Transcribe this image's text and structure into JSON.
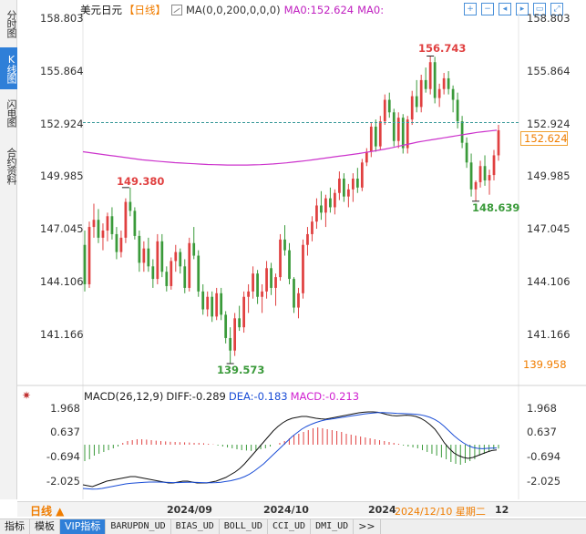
{
  "side_tabs": [
    "分时图",
    "K线图",
    "闪电图",
    "合约资料"
  ],
  "header": {
    "symbol": "美元日元",
    "period": "【日线】",
    "ma_label": "MA(0,0,200,0,0,0)",
    "ma0_value": "MA0:152.624",
    "ma0_label": "MA0:"
  },
  "toolbar_icons": [
    "zoom-in-icon",
    "zoom-out-icon",
    "move-left-icon",
    "move-right-icon",
    "fit-icon",
    "fullscreen-icon"
  ],
  "y_axis": {
    "ticks": [
      "158.803",
      "155.864",
      "152.924",
      "149.985",
      "147.045",
      "144.106",
      "141.166"
    ],
    "current_price": "152.624",
    "bottom_right_value": "139.958"
  },
  "annotations": {
    "high": "156.743",
    "left_peak": "149.380",
    "low": "139.573",
    "right_low": "148.639"
  },
  "macd": {
    "title": "MACD(26,12,9)",
    "diff": "DIFF:-0.289",
    "dea": "DEA:-0.183",
    "macd": "MACD:-0.213",
    "ticks": [
      "1.968",
      "0.637",
      "-0.694",
      "-2.025"
    ]
  },
  "x_axis": {
    "period_button": "日线 ▲",
    "labels": [
      "2024/09",
      "2024/10",
      "2024"
    ],
    "cursor_date": "2024/12/10 星期二",
    "cursor_suffix": "12"
  },
  "bottom_tabs": [
    "指标",
    "模板",
    "VIP指标",
    "BARUPDN_UD",
    "BIAS_UD",
    "BOLL_UD",
    "CCI_UD",
    "DMI_UD",
    ">>"
  ],
  "colors": {
    "up": "#e04040",
    "down": "#3a9a3a",
    "ma": "#cc33cc",
    "dea": "#1a4dd6",
    "accent": "#f07d00"
  },
  "chart_data": {
    "type": "candlestick",
    "ylim": [
      139.573,
      158.803
    ],
    "ohlc": [
      [
        146.2,
        147.0,
        143.6,
        144.0
      ],
      [
        144.0,
        147.5,
        143.8,
        147.2
      ],
      [
        147.2,
        148.5,
        146.6,
        147.6
      ],
      [
        147.6,
        148.2,
        146.3,
        146.6
      ],
      [
        146.6,
        147.4,
        145.9,
        147.0
      ],
      [
        147.0,
        148.0,
        146.4,
        147.8
      ],
      [
        147.8,
        148.3,
        146.5,
        146.8
      ],
      [
        146.8,
        147.2,
        145.4,
        145.8
      ],
      [
        145.8,
        147.0,
        145.5,
        146.6
      ],
      [
        146.6,
        148.8,
        146.3,
        148.6
      ],
      [
        148.6,
        149.4,
        147.8,
        148.1
      ],
      [
        148.1,
        148.3,
        146.5,
        146.7
      ],
      [
        146.7,
        147.0,
        144.7,
        145.2
      ],
      [
        145.2,
        146.4,
        144.7,
        146.0
      ],
      [
        146.0,
        146.6,
        144.7,
        145.0
      ],
      [
        145.0,
        145.4,
        143.8,
        144.3
      ],
      [
        144.3,
        146.8,
        144.0,
        146.4
      ],
      [
        146.4,
        146.8,
        144.4,
        144.7
      ],
      [
        144.7,
        145.0,
        143.6,
        143.9
      ],
      [
        143.9,
        145.5,
        143.7,
        145.3
      ],
      [
        145.3,
        146.2,
        144.7,
        145.8
      ],
      [
        145.8,
        146.0,
        144.6,
        145.0
      ],
      [
        145.0,
        145.4,
        143.5,
        143.8
      ],
      [
        143.8,
        146.6,
        143.6,
        146.3
      ],
      [
        146.3,
        147.2,
        145.4,
        145.6
      ],
      [
        145.6,
        145.9,
        143.3,
        143.6
      ],
      [
        143.6,
        144.0,
        142.3,
        142.6
      ],
      [
        142.6,
        143.6,
        142.2,
        143.3
      ],
      [
        143.3,
        143.6,
        141.9,
        142.2
      ],
      [
        142.2,
        143.8,
        142.0,
        143.5
      ],
      [
        143.5,
        143.8,
        142.0,
        142.3
      ],
      [
        142.3,
        142.5,
        140.7,
        141.0
      ],
      [
        141.0,
        141.6,
        139.573,
        140.3
      ],
      [
        140.3,
        142.4,
        140.0,
        142.1
      ],
      [
        142.1,
        142.8,
        141.4,
        141.6
      ],
      [
        141.6,
        143.6,
        141.3,
        143.3
      ],
      [
        143.3,
        144.0,
        142.4,
        143.6
      ],
      [
        143.6,
        145.0,
        143.2,
        144.6
      ],
      [
        144.6,
        144.8,
        142.9,
        143.3
      ],
      [
        143.3,
        144.0,
        142.4,
        143.6
      ],
      [
        143.6,
        145.3,
        143.2,
        144.9
      ],
      [
        144.9,
        145.2,
        143.4,
        143.8
      ],
      [
        143.8,
        144.6,
        142.8,
        144.4
      ],
      [
        144.4,
        146.8,
        144.2,
        146.5
      ],
      [
        146.5,
        147.3,
        145.6,
        145.9
      ],
      [
        145.9,
        146.3,
        144.0,
        144.3
      ],
      [
        144.3,
        144.4,
        142.4,
        142.7
      ],
      [
        142.7,
        143.8,
        142.1,
        143.5
      ],
      [
        143.5,
        146.5,
        143.2,
        146.2
      ],
      [
        146.2,
        147.2,
        145.6,
        146.8
      ],
      [
        146.8,
        147.8,
        146.4,
        147.5
      ],
      [
        147.5,
        148.8,
        147.1,
        148.4
      ],
      [
        148.4,
        149.2,
        147.6,
        148.0
      ],
      [
        148.0,
        149.0,
        147.2,
        148.8
      ],
      [
        148.8,
        149.4,
        148.0,
        148.3
      ],
      [
        148.3,
        149.3,
        147.9,
        149.1
      ],
      [
        149.1,
        150.3,
        148.7,
        149.9
      ],
      [
        149.9,
        150.2,
        148.6,
        148.9
      ],
      [
        148.9,
        149.6,
        148.3,
        149.3
      ],
      [
        149.3,
        150.2,
        148.6,
        149.9
      ],
      [
        149.9,
        150.5,
        149.1,
        149.4
      ],
      [
        149.4,
        151.0,
        149.2,
        150.8
      ],
      [
        150.8,
        151.6,
        150.6,
        151.4
      ],
      [
        151.4,
        153.0,
        151.1,
        152.8
      ],
      [
        152.8,
        153.2,
        151.4,
        151.7
      ],
      [
        151.7,
        153.4,
        151.5,
        153.1
      ],
      [
        153.1,
        154.6,
        152.9,
        154.3
      ],
      [
        154.3,
        154.7,
        153.3,
        153.6
      ],
      [
        153.6,
        153.8,
        151.7,
        152.0
      ],
      [
        152.0,
        153.6,
        151.6,
        153.3
      ],
      [
        153.3,
        153.5,
        151.3,
        151.6
      ],
      [
        151.6,
        153.4,
        151.3,
        153.2
      ],
      [
        153.2,
        154.8,
        152.9,
        154.5
      ],
      [
        154.5,
        155.4,
        153.6,
        153.9
      ],
      [
        153.9,
        155.7,
        153.6,
        155.4
      ],
      [
        155.4,
        156.1,
        154.7,
        154.9
      ],
      [
        154.9,
        156.743,
        154.6,
        156.4
      ],
      [
        156.4,
        156.7,
        154.1,
        154.4
      ],
      [
        154.4,
        155.2,
        153.9,
        154.9
      ],
      [
        154.9,
        155.8,
        154.6,
        155.5
      ],
      [
        155.5,
        155.9,
        154.6,
        154.9
      ],
      [
        154.9,
        155.1,
        153.6,
        154.3
      ],
      [
        154.3,
        154.7,
        152.7,
        153.1
      ],
      [
        153.1,
        153.4,
        151.6,
        151.9
      ],
      [
        151.9,
        152.2,
        150.5,
        150.8
      ],
      [
        150.8,
        151.3,
        148.9,
        149.3
      ],
      [
        149.3,
        149.8,
        148.639,
        149.7
      ],
      [
        149.7,
        150.9,
        149.4,
        150.6
      ],
      [
        150.6,
        151.2,
        149.5,
        149.8
      ],
      [
        149.8,
        150.4,
        149.0,
        150.1
      ],
      [
        150.1,
        151.5,
        149.8,
        151.2
      ],
      [
        151.2,
        152.9,
        150.9,
        152.6
      ]
    ],
    "ma200": [
      151.4,
      151.35,
      151.3,
      151.25,
      151.2,
      151.15,
      151.1,
      151.05,
      151.0,
      150.95,
      150.92,
      150.88,
      150.85,
      150.82,
      150.79,
      150.77,
      150.75,
      150.73,
      150.71,
      150.69,
      150.68,
      150.67,
      150.66,
      150.66,
      150.66,
      150.66,
      150.67,
      150.68,
      150.7,
      150.72,
      150.75,
      150.78,
      150.82,
      150.86,
      150.9,
      150.95,
      151.0,
      151.05,
      151.1,
      151.15,
      151.2,
      151.25,
      151.3,
      151.36,
      151.42,
      151.48,
      151.55,
      151.62,
      151.7,
      151.78,
      151.86,
      151.94,
      152.0,
      152.06,
      152.12,
      152.18,
      152.24,
      152.3,
      152.36,
      152.42,
      152.48,
      152.52,
      152.56,
      152.6
    ],
    "macd_ylim": [
      -2.6,
      2.4
    ],
    "macd_hist": [
      -0.9,
      -0.8,
      -0.6,
      -0.5,
      -0.4,
      -0.3,
      -0.2,
      -0.1,
      0.1,
      0.2,
      0.25,
      0.3,
      0.3,
      0.28,
      0.25,
      0.22,
      0.2,
      0.18,
      0.16,
      0.15,
      0.14,
      0.13,
      0.12,
      0.1,
      0.1,
      0.08,
      0.05,
      0.02,
      -0.05,
      -0.1,
      -0.15,
      -0.2,
      -0.25,
      -0.3,
      -0.32,
      -0.34,
      -0.3,
      -0.25,
      -0.2,
      -0.1,
      0.0,
      0.1,
      0.2,
      0.35,
      0.5,
      0.6,
      0.7,
      0.8,
      0.9,
      0.95,
      0.9,
      0.85,
      0.8,
      0.75,
      0.7,
      0.6,
      0.55,
      0.5,
      0.45,
      0.4,
      0.35,
      0.3,
      0.25,
      0.2,
      0.15,
      0.1,
      0.05,
      -0.05,
      -0.1,
      -0.15,
      -0.2,
      -0.3,
      -0.4,
      -0.5,
      -0.6,
      -0.7,
      -0.8,
      -0.95,
      -1.05,
      -1.1,
      -1.0,
      -0.9,
      -0.8,
      -0.6,
      -0.5,
      -0.35,
      -0.25,
      -0.21
    ],
    "macd_diff": [
      -2.2,
      -2.25,
      -2.3,
      -2.2,
      -2.1,
      -2.0,
      -1.95,
      -1.9,
      -1.85,
      -1.8,
      -1.75,
      -1.75,
      -1.8,
      -1.85,
      -1.9,
      -1.95,
      -2.0,
      -2.05,
      -2.1,
      -2.1,
      -2.05,
      -2.0,
      -2.0,
      -2.05,
      -2.1,
      -2.1,
      -2.1,
      -2.05,
      -2.0,
      -1.9,
      -1.8,
      -1.65,
      -1.5,
      -1.3,
      -1.05,
      -0.75,
      -0.45,
      -0.15,
      0.15,
      0.45,
      0.75,
      1.0,
      1.2,
      1.35,
      1.45,
      1.5,
      1.55,
      1.55,
      1.5,
      1.45,
      1.42,
      1.4,
      1.45,
      1.5,
      1.55,
      1.6,
      1.65,
      1.7,
      1.75,
      1.78,
      1.8,
      1.8,
      1.78,
      1.72,
      1.65,
      1.6,
      1.58,
      1.6,
      1.62,
      1.6,
      1.55,
      1.45,
      1.3,
      1.1,
      0.85,
      0.5,
      0.1,
      -0.2,
      -0.45,
      -0.6,
      -0.7,
      -0.75,
      -0.7,
      -0.6,
      -0.5,
      -0.4,
      -0.32,
      -0.29
    ],
    "macd_dea": [
      -2.4,
      -2.42,
      -2.44,
      -2.43,
      -2.4,
      -2.35,
      -2.3,
      -2.25,
      -2.2,
      -2.15,
      -2.12,
      -2.1,
      -2.08,
      -2.06,
      -2.05,
      -2.05,
      -2.05,
      -2.06,
      -2.07,
      -2.08,
      -2.08,
      -2.07,
      -2.06,
      -2.06,
      -2.07,
      -2.08,
      -2.09,
      -2.09,
      -2.08,
      -2.06,
      -2.02,
      -1.98,
      -1.92,
      -1.85,
      -1.75,
      -1.62,
      -1.45,
      -1.25,
      -1.05,
      -0.8,
      -0.55,
      -0.3,
      -0.05,
      0.2,
      0.45,
      0.65,
      0.85,
      1.0,
      1.12,
      1.22,
      1.3,
      1.36,
      1.4,
      1.44,
      1.48,
      1.52,
      1.56,
      1.6,
      1.64,
      1.68,
      1.71,
      1.74,
      1.76,
      1.76,
      1.75,
      1.74,
      1.72,
      1.71,
      1.7,
      1.69,
      1.67,
      1.64,
      1.58,
      1.5,
      1.38,
      1.22,
      1.0,
      0.75,
      0.5,
      0.28,
      0.1,
      -0.05,
      -0.15,
      -0.2,
      -0.22,
      -0.2,
      -0.19,
      -0.18
    ]
  }
}
